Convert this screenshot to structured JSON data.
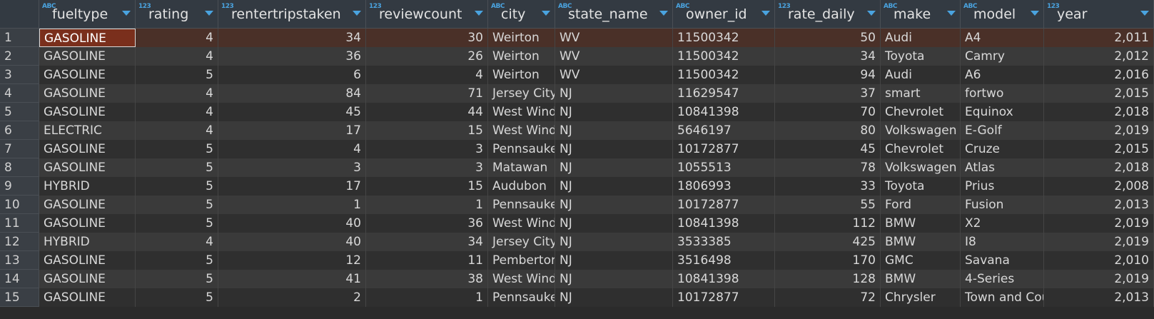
{
  "columns": [
    {
      "name": "fueltype",
      "type_icon": "ABC",
      "align": "left"
    },
    {
      "name": "rating",
      "type_icon": "123",
      "align": "right"
    },
    {
      "name": "rentertripstaken",
      "type_icon": "123",
      "align": "right"
    },
    {
      "name": "reviewcount",
      "type_icon": "123",
      "align": "right"
    },
    {
      "name": "city",
      "type_icon": "ABC",
      "align": "left"
    },
    {
      "name": "state_name",
      "type_icon": "ABC",
      "align": "left"
    },
    {
      "name": "owner_id",
      "type_icon": "ABC",
      "align": "left"
    },
    {
      "name": "rate_daily",
      "type_icon": "123",
      "align": "right"
    },
    {
      "name": "make",
      "type_icon": "ABC",
      "align": "left"
    },
    {
      "name": "model",
      "type_icon": "ABC",
      "align": "left"
    },
    {
      "name": "year",
      "type_icon": "123",
      "align": "right"
    }
  ],
  "rows": [
    {
      "n": "1",
      "cells": [
        "GASOLINE",
        "4",
        "34",
        "30",
        "Weirton",
        "WV",
        "11500342",
        "50",
        "Audi",
        "A4",
        "2,011"
      ]
    },
    {
      "n": "2",
      "cells": [
        "GASOLINE",
        "4",
        "36",
        "26",
        "Weirton",
        "WV",
        "11500342",
        "34",
        "Toyota",
        "Camry",
        "2,012"
      ]
    },
    {
      "n": "3",
      "cells": [
        "GASOLINE",
        "5",
        "6",
        "4",
        "Weirton",
        "WV",
        "11500342",
        "94",
        "Audi",
        "A6",
        "2,016"
      ]
    },
    {
      "n": "4",
      "cells": [
        "GASOLINE",
        "4",
        "84",
        "71",
        "Jersey City",
        "NJ",
        "11629547",
        "37",
        "smart",
        "fortwo",
        "2,015"
      ]
    },
    {
      "n": "5",
      "cells": [
        "GASOLINE",
        "4",
        "45",
        "44",
        "West Windsor",
        "NJ",
        "10841398",
        "70",
        "Chevrolet",
        "Equinox",
        "2,018"
      ]
    },
    {
      "n": "6",
      "cells": [
        "ELECTRIC",
        "4",
        "17",
        "15",
        "West Windsor",
        "NJ",
        "5646197",
        "80",
        "Volkswagen",
        "E-Golf",
        "2,019"
      ]
    },
    {
      "n": "7",
      "cells": [
        "GASOLINE",
        "5",
        "4",
        "3",
        "Pennsauken",
        "NJ",
        "10172877",
        "45",
        "Chevrolet",
        "Cruze",
        "2,015"
      ]
    },
    {
      "n": "8",
      "cells": [
        "GASOLINE",
        "5",
        "3",
        "3",
        "Matawan",
        "NJ",
        "1055513",
        "78",
        "Volkswagen",
        "Atlas",
        "2,018"
      ]
    },
    {
      "n": "9",
      "cells": [
        "HYBRID",
        "5",
        "17",
        "15",
        "Audubon",
        "NJ",
        "1806993",
        "33",
        "Toyota",
        "Prius",
        "2,008"
      ]
    },
    {
      "n": "10",
      "cells": [
        "GASOLINE",
        "5",
        "1",
        "1",
        "Pennsauken",
        "NJ",
        "10172877",
        "55",
        "Ford",
        "Fusion",
        "2,013"
      ]
    },
    {
      "n": "11",
      "cells": [
        "GASOLINE",
        "5",
        "40",
        "36",
        "West Windsor",
        "NJ",
        "10841398",
        "112",
        "BMW",
        "X2",
        "2,019"
      ]
    },
    {
      "n": "12",
      "cells": [
        "HYBRID",
        "4",
        "40",
        "34",
        "Jersey City",
        "NJ",
        "3533385",
        "425",
        "BMW",
        "I8",
        "2,019"
      ]
    },
    {
      "n": "13",
      "cells": [
        "GASOLINE",
        "5",
        "12",
        "11",
        "Pemberton",
        "NJ",
        "3516498",
        "170",
        "GMC",
        "Savana",
        "2,010"
      ]
    },
    {
      "n": "14",
      "cells": [
        "GASOLINE",
        "5",
        "41",
        "38",
        "West Windsor",
        "NJ",
        "10841398",
        "128",
        "BMW",
        "4-Series",
        "2,019"
      ]
    },
    {
      "n": "15",
      "cells": [
        "GASOLINE",
        "5",
        "2",
        "1",
        "Pennsauken",
        "NJ",
        "10172877",
        "72",
        "Chrysler",
        "Town and Country",
        "2,013"
      ]
    }
  ],
  "selected_row": 1,
  "active_cell": {
    "row": 1,
    "col": 0
  },
  "colors": {
    "header_bg": "#333a42",
    "row_odd": "#2f2f2f",
    "row_even": "#3a3a3a",
    "selected_row": "#4a3028",
    "active_cell": "#7a2f1c",
    "type_icon": "#4aa3df"
  }
}
